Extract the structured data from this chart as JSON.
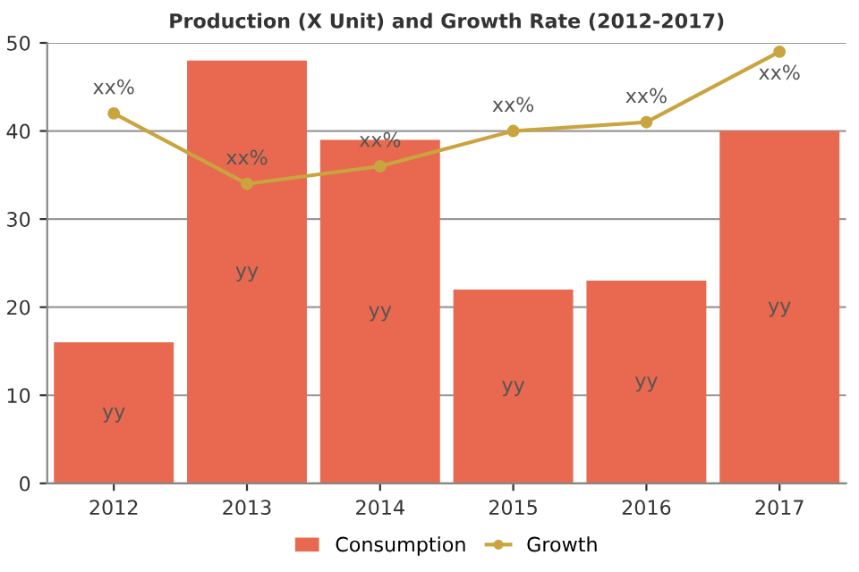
{
  "chart_data": {
    "type": "bar",
    "title": "Production (X Unit) and Growth Rate (2012-2017)",
    "categories": [
      "2012",
      "2013",
      "2014",
      "2015",
      "2016",
      "2017"
    ],
    "series": [
      {
        "name": "Consumption",
        "color": "#e8694f",
        "values": [
          16,
          48,
          39,
          22,
          23,
          40
        ],
        "value_labels": [
          "yy",
          "yy",
          "yy",
          "yy",
          "yy",
          "yy"
        ]
      },
      {
        "name": "Growth",
        "type": "line",
        "color": "#c9a43f",
        "values": [
          42,
          34,
          36,
          40,
          41,
          49
        ],
        "value_labels": [
          "xx%",
          "xx%",
          "xx%",
          "xx%",
          "xx%",
          "xx%"
        ],
        "marker": "circle"
      }
    ],
    "ylim": [
      0,
      50
    ],
    "yticks": [
      0,
      10,
      20,
      30,
      40,
      50
    ],
    "grid": "y",
    "legend": "bottom"
  }
}
